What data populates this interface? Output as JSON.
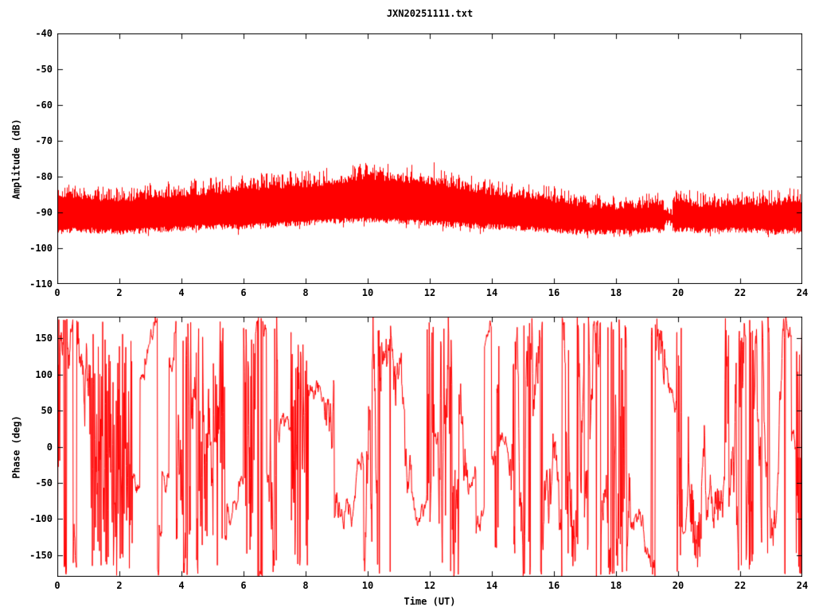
{
  "title": "JXN20251111.txt",
  "colors": {
    "trace": "#ff0000",
    "axis": "#000000",
    "background": "#ffffff",
    "text": "#000000"
  },
  "chart_data": [
    {
      "id": "amplitude",
      "type": "line",
      "title": "JXN20251111.txt",
      "ylabel": "Amplitude (dB)",
      "xlabel": "",
      "xlim": [
        0,
        24
      ],
      "ylim": [
        -110,
        -40
      ],
      "xticks": [
        0,
        2,
        4,
        6,
        8,
        10,
        12,
        14,
        16,
        18,
        20,
        22,
        24
      ],
      "yticks": [
        -110,
        -100,
        -90,
        -80,
        -70,
        -60,
        -50,
        -40
      ],
      "grid": false,
      "legend": null,
      "series_color": "#ff0000",
      "description": "Dense red noise band: noise floor near -92 dB, band top rising from about -85 dB at 0 UT to a broad daytime maximum near -79 dB around 10:30 UT, falling back to about -87 dB after 17 UT; brief quiet notch (band collapses to -89.5..-93 dB) near 19.7 UT.",
      "envelope": {
        "t_hours": [
          0,
          1,
          2,
          3,
          4,
          5,
          6,
          7,
          8,
          9,
          10,
          11,
          12,
          13,
          14,
          15,
          16,
          17,
          18,
          19,
          20,
          21,
          22,
          23,
          24
        ],
        "band_low_db": [
          -95,
          -95,
          -95.5,
          -95,
          -94.5,
          -94,
          -94,
          -93.5,
          -93,
          -92.5,
          -92,
          -92.5,
          -93,
          -93.5,
          -94,
          -94.5,
          -95,
          -95.5,
          -95.5,
          -95,
          -95,
          -95,
          -95,
          -95.5,
          -95
        ],
        "band_high_db": [
          -85,
          -85.5,
          -86,
          -85,
          -84.5,
          -84,
          -83,
          -82.5,
          -82,
          -81,
          -79.5,
          -80.5,
          -81,
          -82.5,
          -84,
          -85,
          -86,
          -87.5,
          -88,
          -87.5,
          -87,
          -87.5,
          -87,
          -87,
          -86.5
        ],
        "spike_high_db": [
          -82,
          -82.5,
          -83,
          -81.5,
          -81,
          -80,
          -79,
          -78.5,
          -78,
          -77,
          -76,
          -76.5,
          -75.5,
          -79,
          -80.5,
          -82,
          -82.5,
          -84.5,
          -85,
          -84.5,
          -83.5,
          -84,
          -84,
          -83.5,
          -83
        ]
      },
      "quiet_notch": {
        "t_start": 19.55,
        "t_end": 19.82,
        "low_db": -93,
        "high_db": -89.5
      }
    },
    {
      "id": "phase",
      "type": "line",
      "title": "",
      "ylabel": "Phase (deg)",
      "xlabel": "Time (UT)",
      "xlim": [
        0,
        24
      ],
      "ylim": [
        -180,
        180
      ],
      "xticks": [
        0,
        2,
        4,
        6,
        8,
        10,
        12,
        14,
        16,
        18,
        20,
        22,
        24
      ],
      "yticks": [
        -150,
        -100,
        -50,
        0,
        50,
        100,
        150
      ],
      "grid": false,
      "legend": null,
      "series_color": "#ff0000",
      "description": "Unlocked random phase: trace wraps and jumps across the full -180..+180 deg range for the entire 24 h, producing near-solid vertical red bands in places and wandering noisy segments elsewhere.",
      "noise": {
        "range_deg": [
          -180,
          180
        ],
        "start_deg": 175,
        "samples": 1872,
        "jump_probability": 0.02,
        "sigma_levels_deg": [
          6,
          18,
          45,
          90,
          170
        ],
        "sigma_weights": [
          0.25,
          0.25,
          0.25,
          0.17,
          0.08
        ],
        "saturated_bands_t": [
          [
            0,
            0.1
          ],
          [
            1.55,
            1.95
          ],
          [
            6.0,
            6.4
          ],
          [
            7.85,
            8.0
          ],
          [
            11.9,
            12.15
          ],
          [
            14.1,
            14.25
          ],
          [
            16.35,
            16.5
          ],
          [
            18.1,
            18.3
          ],
          [
            19.95,
            20.15
          ],
          [
            21.5,
            21.65
          ],
          [
            23.8,
            24.0
          ]
        ]
      }
    }
  ]
}
